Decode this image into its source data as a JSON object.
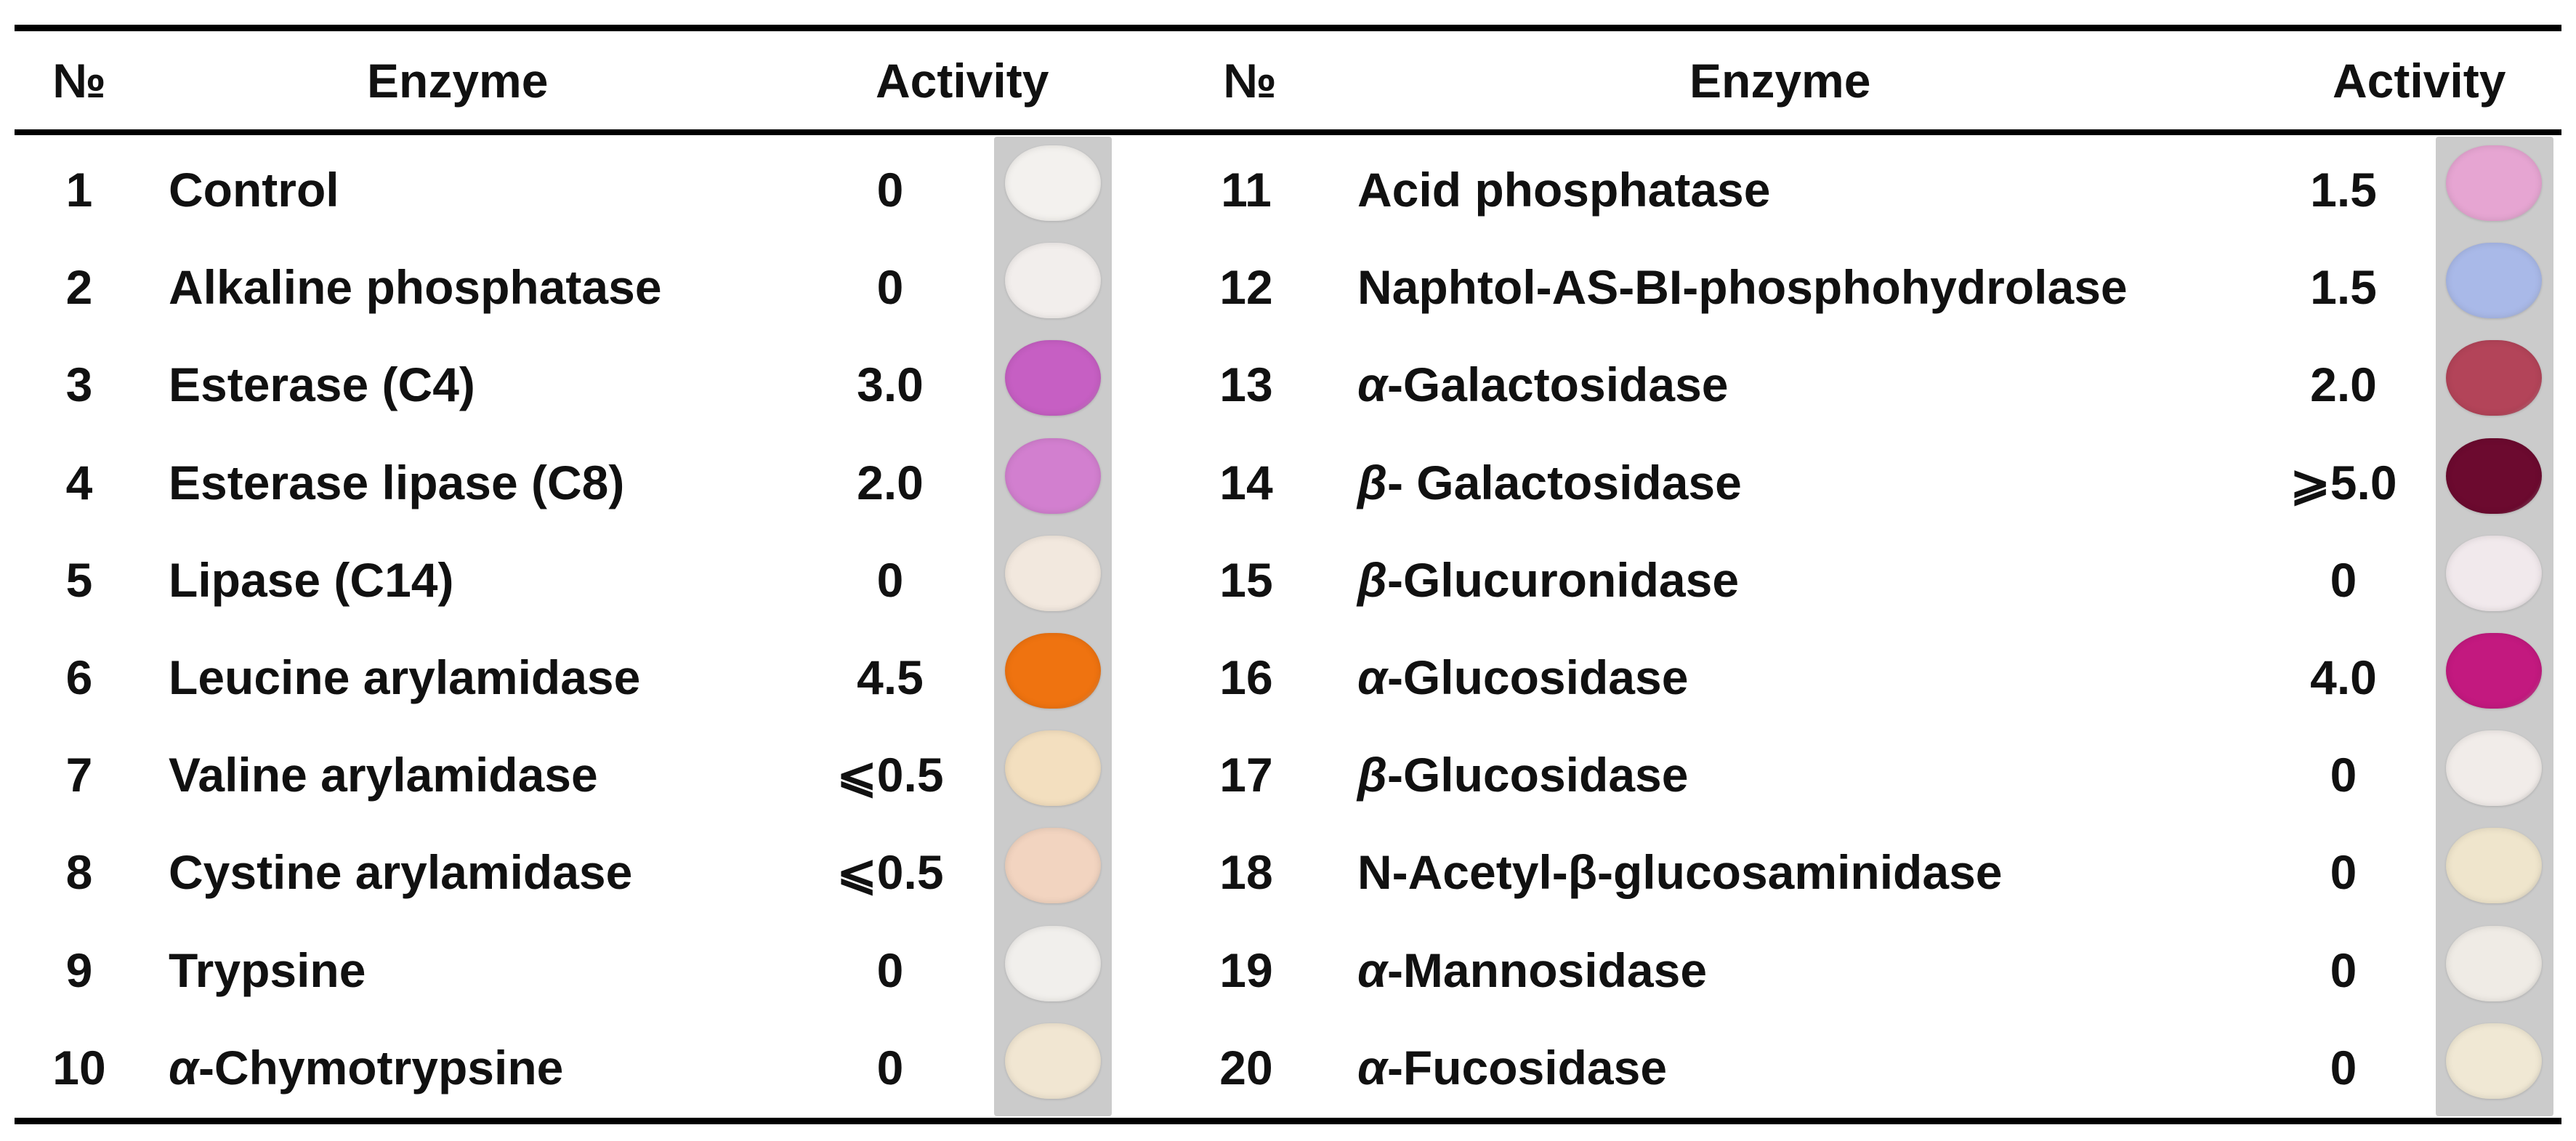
{
  "headers": {
    "num": "№",
    "enzyme": "Enzyme",
    "activity": "Activity"
  },
  "left_rows": [
    {
      "num": "1",
      "prefix": "",
      "name": "Control",
      "activity": "0",
      "well_color": "#f3f1ee"
    },
    {
      "num": "2",
      "prefix": "",
      "name": "Alkaline phosphatase",
      "activity": "0",
      "well_color": "#f2eeec"
    },
    {
      "num": "3",
      "prefix": "",
      "name": "Esterase (C4)",
      "activity": "3.0",
      "well_color": "#c65fc3"
    },
    {
      "num": "4",
      "prefix": "",
      "name": "Esterase lipase (C8)",
      "activity": "2.0",
      "well_color": "#d27fcf"
    },
    {
      "num": "5",
      "prefix": "",
      "name": "Lipase (C14)",
      "activity": "0",
      "well_color": "#f2e8de"
    },
    {
      "num": "6",
      "prefix": "",
      "name": "Leucine arylamidase",
      "activity": "4.5",
      "well_color": "#ef7310"
    },
    {
      "num": "7",
      "prefix": "",
      "name": "Valine arylamidase",
      "activity": "⩽0.5",
      "well_color": "#f3dfbf"
    },
    {
      "num": "8",
      "prefix": "",
      "name": "Cystine arylamidase",
      "activity": "⩽0.5",
      "well_color": "#f2d4c0"
    },
    {
      "num": "9",
      "prefix": "",
      "name": "Trypsine",
      "activity": "0",
      "well_color": "#f1efec"
    },
    {
      "num": "10",
      "prefix": "α",
      "name": "-Chymotrypsine",
      "activity": "0",
      "well_color": "#f1e6d2"
    }
  ],
  "right_rows": [
    {
      "num": "11",
      "prefix": "",
      "name": "Acid phosphatase",
      "activity": "1.5",
      "well_color": "#e6a5d2"
    },
    {
      "num": "12",
      "prefix": "",
      "name": "Naphtol-AS-BI-phosphohydrolase",
      "activity": "1.5",
      "well_color": "#a9b9e8"
    },
    {
      "num": "13",
      "prefix": "α",
      "name": "-Galactosidase",
      "activity": "2.0",
      "well_color": "#b34459"
    },
    {
      "num": "14",
      "prefix": "β",
      "name": "- Galactosidase",
      "activity": "⩾5.0",
      "well_color": "#6c0a2f"
    },
    {
      "num": "15",
      "prefix": "β",
      "name": "-Glucuronidase",
      "activity": "0",
      "well_color": "#f1e9ec"
    },
    {
      "num": "16",
      "prefix": "α",
      "name": "-Glucosidase",
      "activity": "4.0",
      "well_color": "#c3197f"
    },
    {
      "num": "17",
      "prefix": "β",
      "name": "-Glucosidase",
      "activity": "0",
      "well_color": "#f1ece9"
    },
    {
      "num": "18",
      "prefix": "N-Acetyl-β",
      "name": "-glucosaminidase",
      "activity": "0",
      "well_color": "#efe5cc"
    },
    {
      "num": "19",
      "prefix": "α",
      "name": "-Mannosidase",
      "activity": "0",
      "well_color": "#efebe5"
    },
    {
      "num": "20",
      "prefix": "α",
      "name": "-Fucosidase",
      "activity": "0",
      "well_color": "#f0e8d4"
    }
  ]
}
